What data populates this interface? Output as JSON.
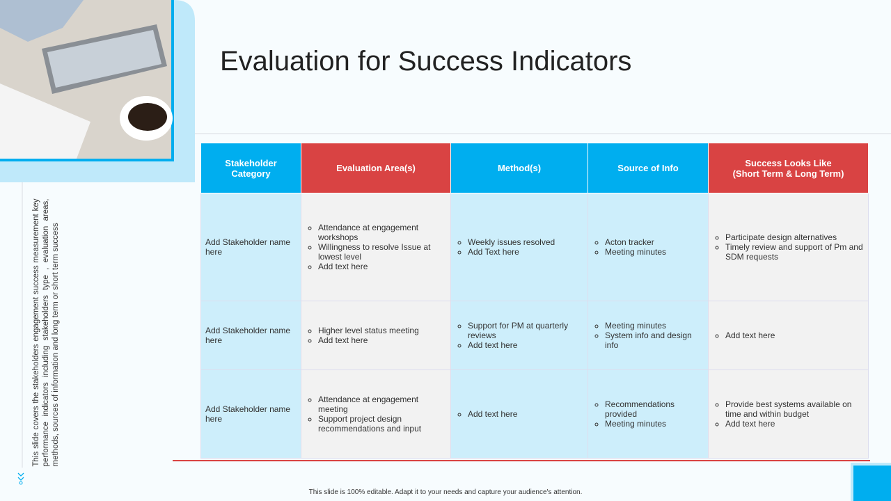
{
  "title": "Evaluation for Success Indicators",
  "side_note": "This slide covers the stakeholders engagement success measurement key performance indicators including stakeholders type , evaluation areas, methods, sources of information and long term or short term success",
  "footer": "This slide is 100% editable. Adapt it to your needs and capture your audience's attention.",
  "table": {
    "headers": [
      "Stakeholder Category",
      "Evaluation Area(s)",
      "Method(s)",
      "Source of Info",
      "Success Looks Like\n(Short Term & Long Term)"
    ],
    "rows": [
      [
        "Add Stakeholder name here",
        [
          "Attendance at engagement workshops",
          "Willingness to resolve Issue at lowest level",
          "Add text here"
        ],
        [
          "Weekly issues resolved",
          "Add Text here"
        ],
        [
          "Acton tracker",
          "Meeting minutes"
        ],
        [
          "Participate design alternatives",
          "Timely review and support of Pm and SDM requests"
        ]
      ],
      [
        "Add Stakeholder name here",
        [
          "Higher level status meeting",
          "Add text here"
        ],
        [
          "Support for PM at quarterly reviews",
          "Add text here"
        ],
        [
          "Meeting minutes",
          "System info and design info"
        ],
        [
          "Add text here"
        ]
      ],
      [
        "Add Stakeholder name here",
        [
          "Attendance at engagement meeting",
          "Support project design recommendations and input"
        ],
        [
          "Add text here"
        ],
        [
          "Recommendations provided",
          "Meeting minutes"
        ],
        [
          "Provide best systems available on time and within budget",
          "Add text here"
        ]
      ]
    ]
  }
}
